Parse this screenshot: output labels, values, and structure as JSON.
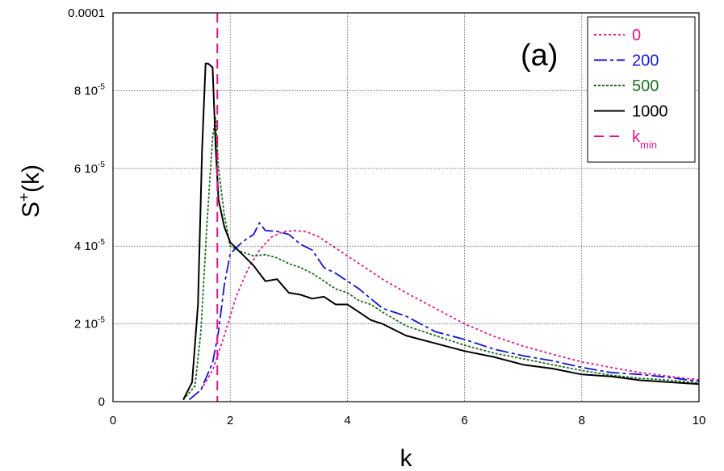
{
  "chart_data": {
    "type": "line",
    "title": "",
    "panel_label": "(a)",
    "xlabel": "k",
    "ylabel": "S+(k)",
    "ylabel_base": "S",
    "ylabel_sup": "+",
    "ylabel_tail": "(k)",
    "xlim": [
      0,
      10
    ],
    "ylim": [
      0,
      0.0001
    ],
    "grid": true,
    "legend_position": "top-right",
    "x_ticks": [
      {
        "value": 0,
        "label": "0"
      },
      {
        "value": 2,
        "label": "2"
      },
      {
        "value": 4,
        "label": "4"
      },
      {
        "value": 6,
        "label": "6"
      },
      {
        "value": 8,
        "label": "8"
      },
      {
        "value": 10,
        "label": "10"
      }
    ],
    "y_ticks": [
      {
        "value": 0,
        "label": "0",
        "mant": "",
        "exp": ""
      },
      {
        "value": 2e-05,
        "label": "2 10-5",
        "mant": "2 10",
        "exp": "-5"
      },
      {
        "value": 4e-05,
        "label": "4 10-5",
        "mant": "4 10",
        "exp": "-5"
      },
      {
        "value": 6e-05,
        "label": "6 10-5",
        "mant": "6 10",
        "exp": "-5"
      },
      {
        "value": 8e-05,
        "label": "8 10-5",
        "mant": "8 10",
        "exp": "-5"
      },
      {
        "value": 0.0001,
        "label": "0.0001",
        "mant": "0.0001",
        "exp": ""
      }
    ],
    "series": [
      {
        "name": "0",
        "color": "#e8158c",
        "dash": "3,3",
        "x": [
          1.5,
          1.7,
          1.9,
          2.1,
          2.3,
          2.5,
          2.7,
          2.9,
          3.1,
          3.3,
          3.5,
          3.7,
          4.0,
          4.3,
          4.6,
          5.0,
          5.5,
          6.0,
          6.5,
          7.0,
          7.5,
          8.0,
          8.5,
          9.0,
          9.5,
          10.0
        ],
        "y": [
          3e-06,
          8e-06,
          1.7e-05,
          2.7e-05,
          3.4e-05,
          3.9e-05,
          4.23e-05,
          4.37e-05,
          4.4e-05,
          4.37e-05,
          4.25e-05,
          4.05e-05,
          3.75e-05,
          3.45e-05,
          3.15e-05,
          2.8e-05,
          2.4e-05,
          2e-05,
          1.68e-05,
          1.43e-05,
          1.22e-05,
          1.02e-05,
          8.8e-06,
          7.5e-06,
          6.5e-06,
          5.6e-06
        ]
      },
      {
        "name": "200",
        "color": "#1414d2",
        "dash": "16,4,4,4",
        "x": [
          1.3,
          1.5,
          1.7,
          1.8,
          1.9,
          2.0,
          2.2,
          2.4,
          2.5,
          2.6,
          2.8,
          3.0,
          3.2,
          3.4,
          3.6,
          3.8,
          4.0,
          4.2,
          4.4,
          4.6,
          5.0,
          5.5,
          6.0,
          6.5,
          7.0,
          7.5,
          8.0,
          8.5,
          9.0,
          9.5,
          10.0
        ],
        "y": [
          5e-07,
          3e-06,
          1e-05,
          1.8e-05,
          3e-05,
          3.8e-05,
          4.1e-05,
          4.3e-05,
          4.6e-05,
          4.4e-05,
          4.38e-05,
          4.3e-05,
          4.05e-05,
          3.9e-05,
          3.45e-05,
          3.3e-05,
          3.1e-05,
          2.9e-05,
          2.65e-05,
          2.4e-05,
          2.2e-05,
          1.8e-05,
          1.6e-05,
          1.35e-05,
          1.18e-05,
          1.05e-05,
          8.8e-06,
          7.5e-06,
          7e-06,
          6.2e-06,
          5.2e-06
        ]
      },
      {
        "name": "500",
        "color": "#1e6e1e",
        "dash": "3,2",
        "x": [
          1.2,
          1.4,
          1.5,
          1.6,
          1.7,
          1.75,
          1.8,
          1.9,
          2.0,
          2.2,
          2.4,
          2.6,
          2.8,
          3.0,
          3.2,
          3.4,
          3.6,
          3.8,
          4.0,
          4.2,
          4.4,
          4.6,
          5.0,
          5.5,
          6.0,
          6.5,
          7.0,
          7.5,
          8.0,
          8.5,
          9.0,
          9.5,
          10.0
        ],
        "y": [
          5e-07,
          4e-06,
          1.8e-05,
          4.5e-05,
          6.8e-05,
          7.3e-05,
          6e-05,
          4.8e-05,
          4e-05,
          3.85e-05,
          3.75e-05,
          3.78e-05,
          3.7e-05,
          3.55e-05,
          3.45e-05,
          3.3e-05,
          3.1e-05,
          2.9e-05,
          2.8e-05,
          2.6e-05,
          2.5e-05,
          2.3e-05,
          1.95e-05,
          1.7e-05,
          1.45e-05,
          1.25e-05,
          1.1e-05,
          9.5e-06,
          8e-06,
          6.8e-06,
          6e-06,
          5.5e-06,
          4.8e-06
        ]
      },
      {
        "name": "1000",
        "color": "#000000",
        "dash": "",
        "x": [
          1.2,
          1.35,
          1.45,
          1.52,
          1.58,
          1.62,
          1.7,
          1.75,
          1.8,
          1.9,
          2.0,
          2.2,
          2.4,
          2.6,
          2.8,
          3.0,
          3.2,
          3.4,
          3.6,
          3.8,
          4.0,
          4.2,
          4.4,
          4.6,
          5.0,
          5.5,
          6.0,
          6.5,
          7.0,
          7.5,
          8.0,
          8.5,
          9.0,
          9.5,
          10.0
        ],
        "y": [
          5e-07,
          5e-06,
          2.5e-05,
          6.5e-05,
          8.7e-05,
          8.7e-05,
          8.6e-05,
          6.6e-05,
          5.2e-05,
          4.5e-05,
          4.1e-05,
          3.8e-05,
          3.5e-05,
          3.1e-05,
          3.15e-05,
          2.8e-05,
          2.75e-05,
          2.65e-05,
          2.7e-05,
          2.5e-05,
          2.5e-05,
          2.3e-05,
          2.1e-05,
          2e-05,
          1.7e-05,
          1.5e-05,
          1.3e-05,
          1.15e-05,
          9.5e-06,
          8.5e-06,
          7e-06,
          6.5e-06,
          5.5e-06,
          5e-06,
          4.5e-06
        ]
      }
    ],
    "vline": {
      "name": "k",
      "name_sub": "min",
      "label": "kmin",
      "x": 1.78,
      "color": "#e8158c",
      "dash": "12,7"
    }
  }
}
